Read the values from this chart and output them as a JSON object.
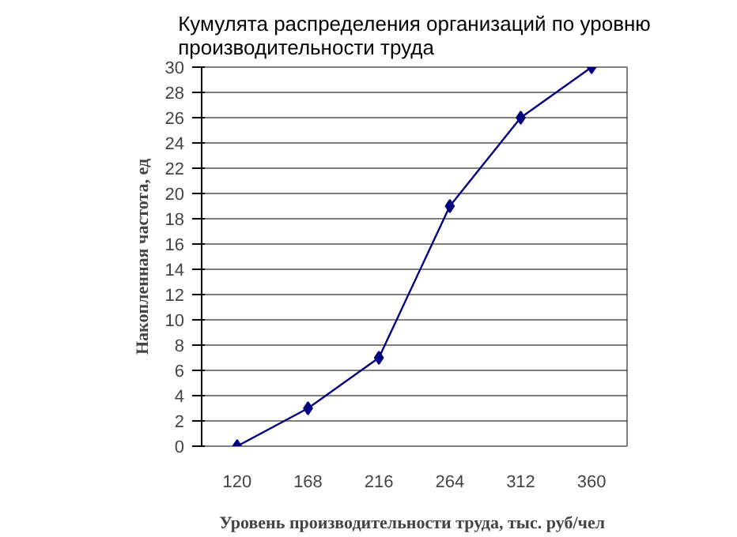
{
  "chart_data": {
    "type": "line",
    "title": "Кумулята распределения организаций по уровню\nпроизводительности труда",
    "xlabel": "Уровень производительности труда,  тыс. руб/чел",
    "ylabel": "Накопленная частота, ед",
    "categories": [
      "120",
      "168",
      "216",
      "264",
      "312",
      "360"
    ],
    "series": [
      {
        "color": "#000080",
        "values": [
          0,
          3,
          7,
          19,
          26,
          30
        ]
      }
    ],
    "ylim": [
      0,
      30
    ],
    "yticks": [
      0,
      2,
      4,
      6,
      8,
      10,
      12,
      14,
      16,
      18,
      20,
      22,
      24,
      26,
      28,
      30
    ],
    "grid": "y",
    "marker": "diamond",
    "line_style": "solid"
  }
}
